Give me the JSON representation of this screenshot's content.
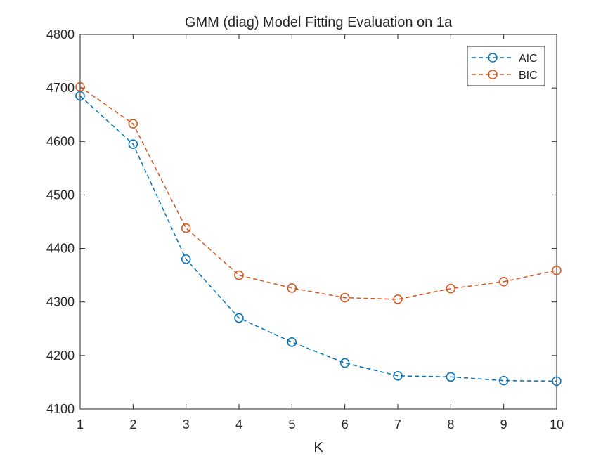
{
  "chart_data": {
    "type": "line",
    "title": "GMM (diag) Model Fitting Evaluation on 1a",
    "xlabel": "K",
    "ylabel": "",
    "xlim": [
      1,
      10
    ],
    "ylim": [
      4100,
      4800
    ],
    "xticks": [
      1,
      2,
      3,
      4,
      5,
      6,
      7,
      8,
      9,
      10
    ],
    "yticks": [
      4100,
      4200,
      4300,
      4400,
      4500,
      4600,
      4700,
      4800
    ],
    "grid": false,
    "legend_position": "top-right",
    "x": [
      1,
      2,
      3,
      4,
      5,
      6,
      7,
      8,
      9,
      10
    ],
    "series": [
      {
        "name": "AIC",
        "color": "#0072BD",
        "line_style": "dashed",
        "marker": "circle",
        "values": [
          4685,
          4595,
          4380,
          4270,
          4225,
          4186,
          4162,
          4160,
          4153,
          4152
        ]
      },
      {
        "name": "BIC",
        "color": "#D95319",
        "line_style": "dashed",
        "marker": "circle",
        "values": [
          4702,
          4633,
          4438,
          4350,
          4326,
          4308,
          4305,
          4325,
          4338,
          4359
        ]
      }
    ]
  }
}
